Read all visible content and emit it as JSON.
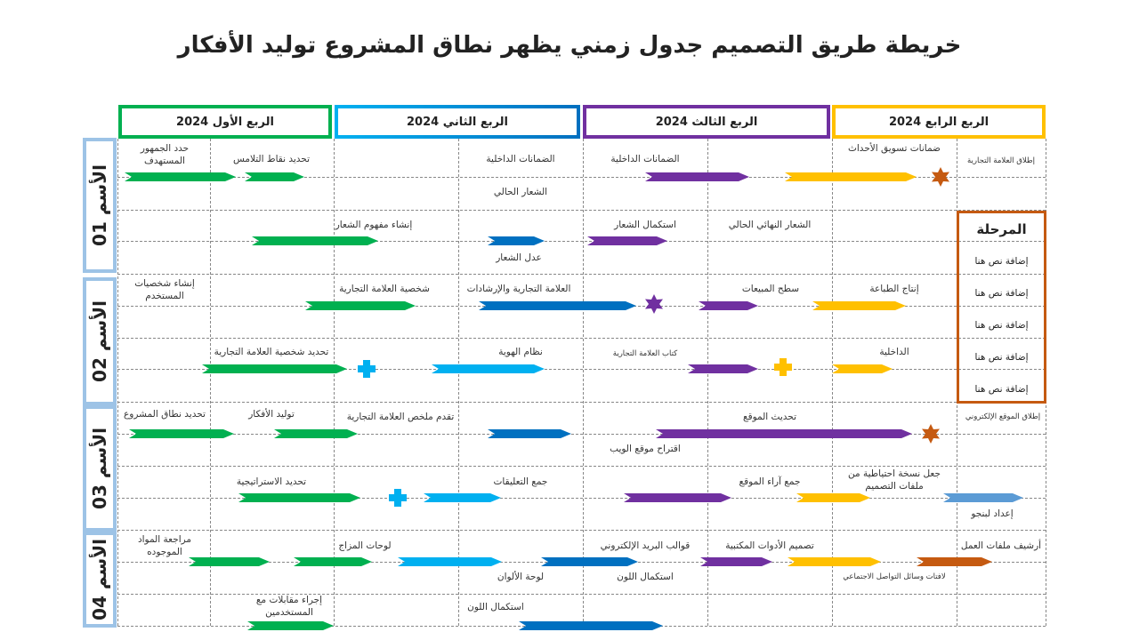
{
  "title": "خريطة طريق التصميم جدول زمني يظهر نطاق المشروع توليد الأفكار",
  "quarters": [
    "الربع الأول 2024",
    "الربع الثاني 2024",
    "الربع الثالث 2024",
    "الربع الرابع 2024"
  ],
  "names": [
    "الأسم 01",
    "الأسم 02",
    "الأسم 03",
    "الأسم 04"
  ],
  "phase": {
    "header": "المرحلة",
    "items": [
      "إضافة نص هنا",
      "إضافة نص هنا",
      "إضافة نص هنا",
      "إضافة نص هنا",
      "إضافة نص هنا"
    ]
  },
  "colors": {
    "green": "#00b050",
    "blue": "#0070c0",
    "cyan": "#00b0f0",
    "purple": "#7030a0",
    "yellow": "#ffc000",
    "orange": "#c55a11",
    "lightblue": "#5b9bd5"
  },
  "labels": [
    "حدد الجمهور المستهدف",
    "تحديد نقاط التلامس",
    "الضمانات الداخلية",
    "الضمانات الداخلية",
    "ضمانات تسويق الأحداث",
    "إطلاق العلامة التجارية",
    "الشعار الحالي",
    "إنشاء مفهوم الشعار",
    "استكمال الشعار",
    "الشعار النهائي الحالي",
    "عدل الشعار",
    "إنشاء شخصيات المستخدم",
    "شخصية العلامة التجارية",
    "العلامة التجارية والإرشادات",
    "سطح المبيعات",
    "إنتاج الطباعة",
    "تحديد شخصية العلامة التجارية",
    "نظام الهوية",
    "كتاب العلامة التجارية",
    "الداخلية",
    "تحديد نطاق المشروع",
    "توليد الأفكار",
    "تقدم ملخص العلامة التجارية",
    "تحديث الموقع",
    "إطلاق الموقع الإلكتروني",
    "اقتراح موقع الويب",
    "تحديد الاستراتيجية",
    "جمع التعليقات",
    "جمع آراء الموقع",
    "جعل نسخة احتياطية من ملفات التصميم",
    "إعداد لبنجو",
    "مراجعة المواد الموجوده",
    "لوحات المزاج",
    "قوالب البريد الإلكتروني",
    "تصميم الأدوات المكتبية",
    "أرشيف ملفات العمل",
    "لوحة الألوان",
    "استكمال اللون",
    "لافتات وسائل التواصل الاجتماعي",
    "إجراء مقابلات مع المستخدمين",
    "استكمال اللون"
  ]
}
